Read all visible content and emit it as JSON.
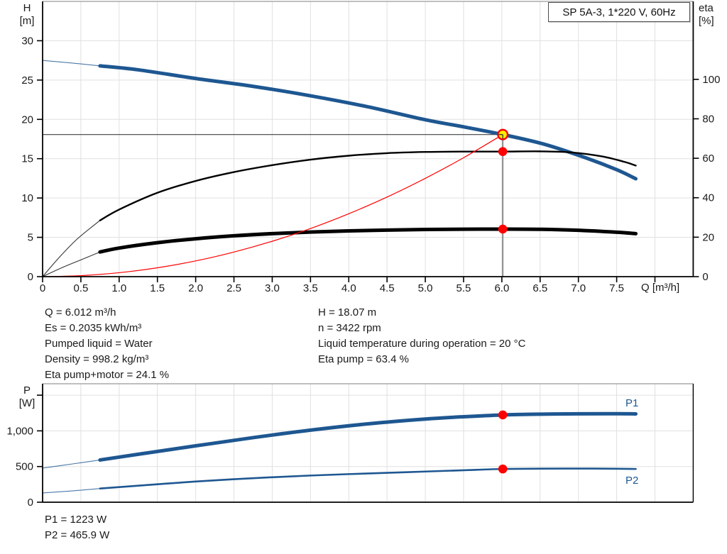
{
  "title_box": {
    "label": "SP 5A-3, 1*220 V, 60Hz"
  },
  "labels": {
    "h_axis": [
      "H",
      "[m]"
    ],
    "eta_axis": [
      "eta",
      "[%]"
    ],
    "q_axis": "Q [m³/h]",
    "p_axis": [
      "P",
      "[W]"
    ]
  },
  "info_block": {
    "left": [
      "Q = 6.012 m³/h",
      "Es = 0.2035 kWh/m³",
      "Pumped liquid = Water",
      "Density = 998.2 kg/m³",
      "Eta pump+motor = 24.1 %"
    ],
    "right": [
      "H = 18.07 m",
      "n = 3422 rpm",
      "Liquid temperature during operation = 20 °C",
      "Eta pump = 63.4 %"
    ]
  },
  "power_block": [
    "P1 = 1223 W",
    "P2 = 465.9 W"
  ],
  "colors": {
    "curve_blue": "#1E5791",
    "curve_black": "#000000",
    "curve_red": "#FF0000",
    "marker_red": "#FF0000",
    "marker_yellow": "#FFEB00",
    "grid": "#E0E0E0",
    "guide": "#3F3F3F",
    "axis": "#000000",
    "top_border": "#999999",
    "text": "#1A1A1A"
  },
  "chart_data": [
    {
      "type": "line",
      "title": "SP 5A-3, 1*220 V, 60Hz",
      "xlabel": "Q [m³/h]",
      "ylabel_left": "H [m]",
      "ylabel_right": "eta [%]",
      "xlim": [
        0,
        8.5
      ],
      "ylim_left": [
        0,
        35
      ],
      "ylim_right": [
        0,
        139.5
      ],
      "grid": true,
      "x_tick_values": [
        0,
        0.5,
        1,
        1.5,
        2,
        2.5,
        3,
        3.5,
        4,
        4.5,
        5,
        5.5,
        6,
        6.5,
        7,
        7.5
      ],
      "x_tick_labels": [
        "0",
        "0.5",
        "1.0",
        "1.5",
        "2.0",
        "2.5",
        "3.0",
        "3.5",
        "4.0",
        "4.5",
        "5.0",
        "5.5",
        "6.0",
        "6.5",
        "7.0",
        "7.5"
      ],
      "y_left_tick_values": [
        0,
        5,
        10,
        15,
        20,
        25,
        30
      ],
      "y_left_tick_labels": [
        "0",
        "5",
        "10",
        "15",
        "20",
        "25",
        "30"
      ],
      "y_right_tick_values": [
        0,
        20,
        40,
        60,
        80,
        100
      ],
      "y_right_tick_labels": [
        "0",
        "20",
        "40",
        "60",
        "80",
        "100"
      ],
      "series": [
        {
          "name": "H pump curve",
          "axis": "left",
          "color_key": "curve_blue",
          "width": 5,
          "thin_until": 0.75,
          "points": [
            [
              0,
              27.5
            ],
            [
              0.4,
              27.15
            ],
            [
              0.75,
              26.8
            ],
            [
              1.25,
              26.3
            ],
            [
              2,
              25.2
            ],
            [
              2.75,
              24.2
            ],
            [
              3.5,
              23.0
            ],
            [
              4.25,
              21.6
            ],
            [
              5,
              19.95
            ],
            [
              5.5,
              19.05
            ],
            [
              6.012,
              18.07
            ],
            [
              6.55,
              16.85
            ],
            [
              7.1,
              15.1
            ],
            [
              7.5,
              13.6
            ],
            [
              7.75,
              12.45
            ]
          ]
        },
        {
          "name": "eta pump",
          "axis": "right",
          "color_key": "curve_black",
          "width": 2.4,
          "thin_until": 0.75,
          "points": [
            [
              0,
              0
            ],
            [
              0.2,
              9
            ],
            [
              0.45,
              19
            ],
            [
              0.75,
              28.5
            ],
            [
              1,
              34
            ],
            [
              1.5,
              42.5
            ],
            [
              2,
              48.5
            ],
            [
              2.5,
              53
            ],
            [
              3,
              56.5
            ],
            [
              3.5,
              59.3
            ],
            [
              4,
              61.3
            ],
            [
              4.5,
              62.6
            ],
            [
              5,
              63.2
            ],
            [
              5.5,
              63.4
            ],
            [
              6.012,
              63.4
            ],
            [
              6.5,
              63.5
            ],
            [
              6.9,
              63.0
            ],
            [
              7.3,
              61.0
            ],
            [
              7.6,
              58.2
            ],
            [
              7.75,
              56.3
            ]
          ]
        },
        {
          "name": "eta pump+motor",
          "axis": "right",
          "color_key": "curve_black",
          "width": 5,
          "thin_until": 0.75,
          "points": [
            [
              0,
              0
            ],
            [
              0.25,
              4.5
            ],
            [
              0.5,
              8.5
            ],
            [
              0.75,
              12.5
            ],
            [
              1,
              14.5
            ],
            [
              1.5,
              17.2
            ],
            [
              2,
              19.2
            ],
            [
              2.5,
              20.7
            ],
            [
              3,
              21.8
            ],
            [
              3.5,
              22.6
            ],
            [
              4,
              23.2
            ],
            [
              4.5,
              23.6
            ],
            [
              5,
              23.9
            ],
            [
              5.5,
              24.05
            ],
            [
              6.012,
              24.1
            ],
            [
              6.5,
              24.0
            ],
            [
              7,
              23.5
            ],
            [
              7.5,
              22.5
            ],
            [
              7.75,
              21.8
            ]
          ]
        },
        {
          "name": "duty curve",
          "axis": "left",
          "color_key": "curve_red",
          "width": 1.2,
          "thin_until": 0,
          "points": [
            [
              0,
              0
            ],
            [
              0.5,
              0.13
            ],
            [
              1,
              0.5
            ],
            [
              1.5,
              1.13
            ],
            [
              2,
              2.0
            ],
            [
              2.5,
              3.13
            ],
            [
              3,
              4.5
            ],
            [
              3.5,
              6.12
            ],
            [
              4,
              8.0
            ],
            [
              4.5,
              10.12
            ],
            [
              5,
              12.5
            ],
            [
              5.5,
              15.12
            ],
            [
              6.012,
              18.07
            ]
          ]
        }
      ],
      "operating_point": {
        "q": 6.012,
        "h": 18.07,
        "eta_pump": 63.4,
        "eta_pump_motor": 24.1
      },
      "markers": [
        {
          "q": 6.012,
          "value": 18.07,
          "axis": "left",
          "style": "operating-point"
        },
        {
          "q": 6.012,
          "value": 63.4,
          "axis": "right",
          "style": "dot"
        },
        {
          "q": 6.012,
          "value": 24.1,
          "axis": "right",
          "style": "dot"
        }
      ]
    },
    {
      "type": "line",
      "xlabel": "Q [m³/h]",
      "ylabel_left": "P [W]",
      "xlim": [
        0,
        8.5
      ],
      "ylim_left": [
        0,
        1660
      ],
      "grid": true,
      "y_left_tick_values": [
        0,
        500,
        1000,
        1500
      ],
      "y_left_tick_labels": [
        "0",
        "500",
        "1,000",
        ""
      ],
      "series": [
        {
          "name": "P1",
          "axis": "left",
          "color_key": "curve_blue",
          "width": 5,
          "thin_until": 0.75,
          "points": [
            [
              0,
              478
            ],
            [
              0.4,
              538
            ],
            [
              0.75,
              592
            ],
            [
              1.25,
              672
            ],
            [
              2,
              790
            ],
            [
              2.75,
              905
            ],
            [
              3.5,
              1010
            ],
            [
              4.25,
              1098
            ],
            [
              5,
              1165
            ],
            [
              5.5,
              1198
            ],
            [
              6.012,
              1223
            ],
            [
              6.5,
              1234
            ],
            [
              7,
              1239
            ],
            [
              7.4,
              1240
            ],
            [
              7.75,
              1238
            ]
          ]
        },
        {
          "name": "P2",
          "axis": "left",
          "color_key": "curve_blue",
          "width": 2.6,
          "thin_until": 0.75,
          "points": [
            [
              0,
              130
            ],
            [
              0.4,
              160
            ],
            [
              0.75,
              192
            ],
            [
              1.25,
              232
            ],
            [
              2,
              290
            ],
            [
              2.5,
              322
            ],
            [
              3,
              350
            ],
            [
              3.5,
              374
            ],
            [
              4,
              394
            ],
            [
              4.5,
              412
            ],
            [
              5,
              430
            ],
            [
              5.5,
              448
            ],
            [
              6.012,
              465.9
            ],
            [
              6.5,
              470
            ],
            [
              7,
              472
            ],
            [
              7.5,
              469
            ],
            [
              7.75,
              466
            ]
          ]
        }
      ],
      "markers": [
        {
          "q": 6.012,
          "value": 1223,
          "axis": "left",
          "style": "dot"
        },
        {
          "q": 6.012,
          "value": 465.9,
          "axis": "left",
          "style": "dot"
        }
      ]
    }
  ]
}
